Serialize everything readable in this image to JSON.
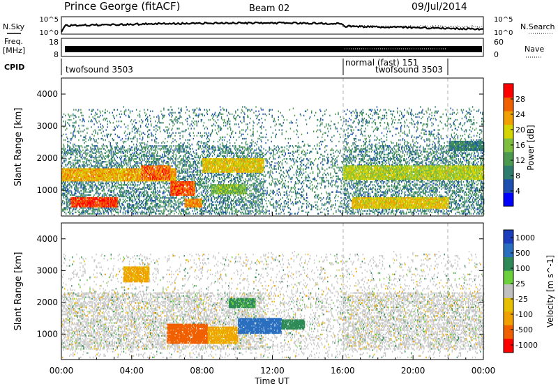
{
  "header": {
    "station": "Prince George (fitACF)",
    "beam": "Beam 02",
    "date": "09/Jul/2014"
  },
  "side_labels": {
    "noise_sky": "N.Sky",
    "noise_search": "N.Search",
    "freq_line1": "Freq.",
    "freq_line2": "[MHz]",
    "nave": "Nave",
    "cpid": "CPID"
  },
  "noise_panel": {
    "left_ticks": [
      "10^5",
      "10^0"
    ],
    "right_ticks": [
      "10^5",
      "10^0"
    ]
  },
  "freq_panel": {
    "left_ticks": [
      "18",
      "8"
    ],
    "right_ticks": [
      "60",
      "0"
    ]
  },
  "cpid_segments": [
    {
      "label": "twofsound 3503",
      "start_hour": 0
    },
    {
      "label": "normal (fast) 151",
      "start_hour": 16
    },
    {
      "label": "twofsound 3503",
      "start_hour": 22
    }
  ],
  "colors": {
    "power": [
      "#0000ff",
      "#1e4fb0",
      "#2e7d6e",
      "#4c9a50",
      "#7fbf3f",
      "#d4d400",
      "#f0a000",
      "#f06000",
      "#ff0000"
    ],
    "velocity": [
      "#1c3dbd",
      "#2a6fbf",
      "#2e8b57",
      "#6ccf3c",
      "#c0c0c0",
      "#e6c000",
      "#f0a000",
      "#f06000",
      "#ff0000"
    ],
    "ground_scatter": "#c8c8c8"
  },
  "chart_data": [
    {
      "type": "heatmap",
      "name": "power",
      "xlabel": "",
      "ylabel": "Slant Range [km]",
      "x_unit": "hours UT",
      "xlim": [
        0,
        24
      ],
      "ylim": [
        200,
        4500
      ],
      "y_ticks": [
        1000,
        2000,
        3000,
        4000
      ],
      "colorbar": {
        "label": "Power [dB]",
        "ticks": [
          "4",
          "8",
          "12",
          "16",
          "20",
          "24",
          "28"
        ],
        "range": [
          0,
          30
        ]
      },
      "features": [
        {
          "t0": 0.0,
          "t1": 6.5,
          "r0": 1250,
          "r1": 1650,
          "dB": 22
        },
        {
          "t0": 0.5,
          "t1": 3.2,
          "r0": 450,
          "r1": 750,
          "dB": 28
        },
        {
          "t0": 4.5,
          "t1": 6.2,
          "r0": 1300,
          "r1": 1750,
          "dB": 26
        },
        {
          "t0": 6.2,
          "t1": 7.6,
          "r0": 800,
          "r1": 1250,
          "dB": 27
        },
        {
          "t0": 7.0,
          "t1": 8.0,
          "r0": 450,
          "r1": 700,
          "dB": 24
        },
        {
          "t0": 8.0,
          "t1": 11.5,
          "r0": 1550,
          "r1": 2000,
          "dB": 20
        },
        {
          "t0": 8.5,
          "t1": 10.5,
          "r0": 850,
          "r1": 1150,
          "dB": 14
        },
        {
          "t0": 16.0,
          "t1": 24.0,
          "r0": 1300,
          "r1": 1750,
          "dB": 17
        },
        {
          "t0": 16.5,
          "t1": 22.0,
          "r0": 400,
          "r1": 750,
          "dB": 20
        },
        {
          "t0": 22.0,
          "t1": 24.0,
          "r0": 2200,
          "r1": 2500,
          "dB": 8
        }
      ]
    },
    {
      "type": "heatmap",
      "name": "velocity",
      "xlabel": "Time UT",
      "ylabel": "Slant Range [km]",
      "x_unit": "hours UT",
      "xlim": [
        0,
        24
      ],
      "ylim": [
        200,
        4500
      ],
      "x_ticks": [
        "00:00",
        "04:00",
        "08:00",
        "12:00",
        "16:00",
        "20:00",
        "00:00"
      ],
      "y_ticks": [
        1000,
        2000,
        3000,
        4000
      ],
      "colorbar": {
        "label": "Velocity [m s^-1]",
        "ticks": [
          "1000",
          "500",
          "100",
          "25",
          "-25",
          "-100",
          "-500",
          "-1000"
        ]
      },
      "features": [
        {
          "t0": 6.0,
          "t1": 8.3,
          "r0": 700,
          "r1": 1300,
          "v": -600
        },
        {
          "t0": 8.3,
          "t1": 10.0,
          "r0": 700,
          "r1": 1200,
          "v": -150
        },
        {
          "t0": 10.0,
          "t1": 12.5,
          "r0": 1000,
          "r1": 1500,
          "v": 700
        },
        {
          "t0": 12.5,
          "t1": 13.8,
          "r0": 1150,
          "r1": 1450,
          "v": 400
        },
        {
          "t0": 9.5,
          "t1": 11.0,
          "r0": 1800,
          "r1": 2100,
          "v": 150
        },
        {
          "t0": 3.5,
          "t1": 5.0,
          "r0": 2600,
          "r1": 3100,
          "v": -150
        }
      ]
    }
  ]
}
